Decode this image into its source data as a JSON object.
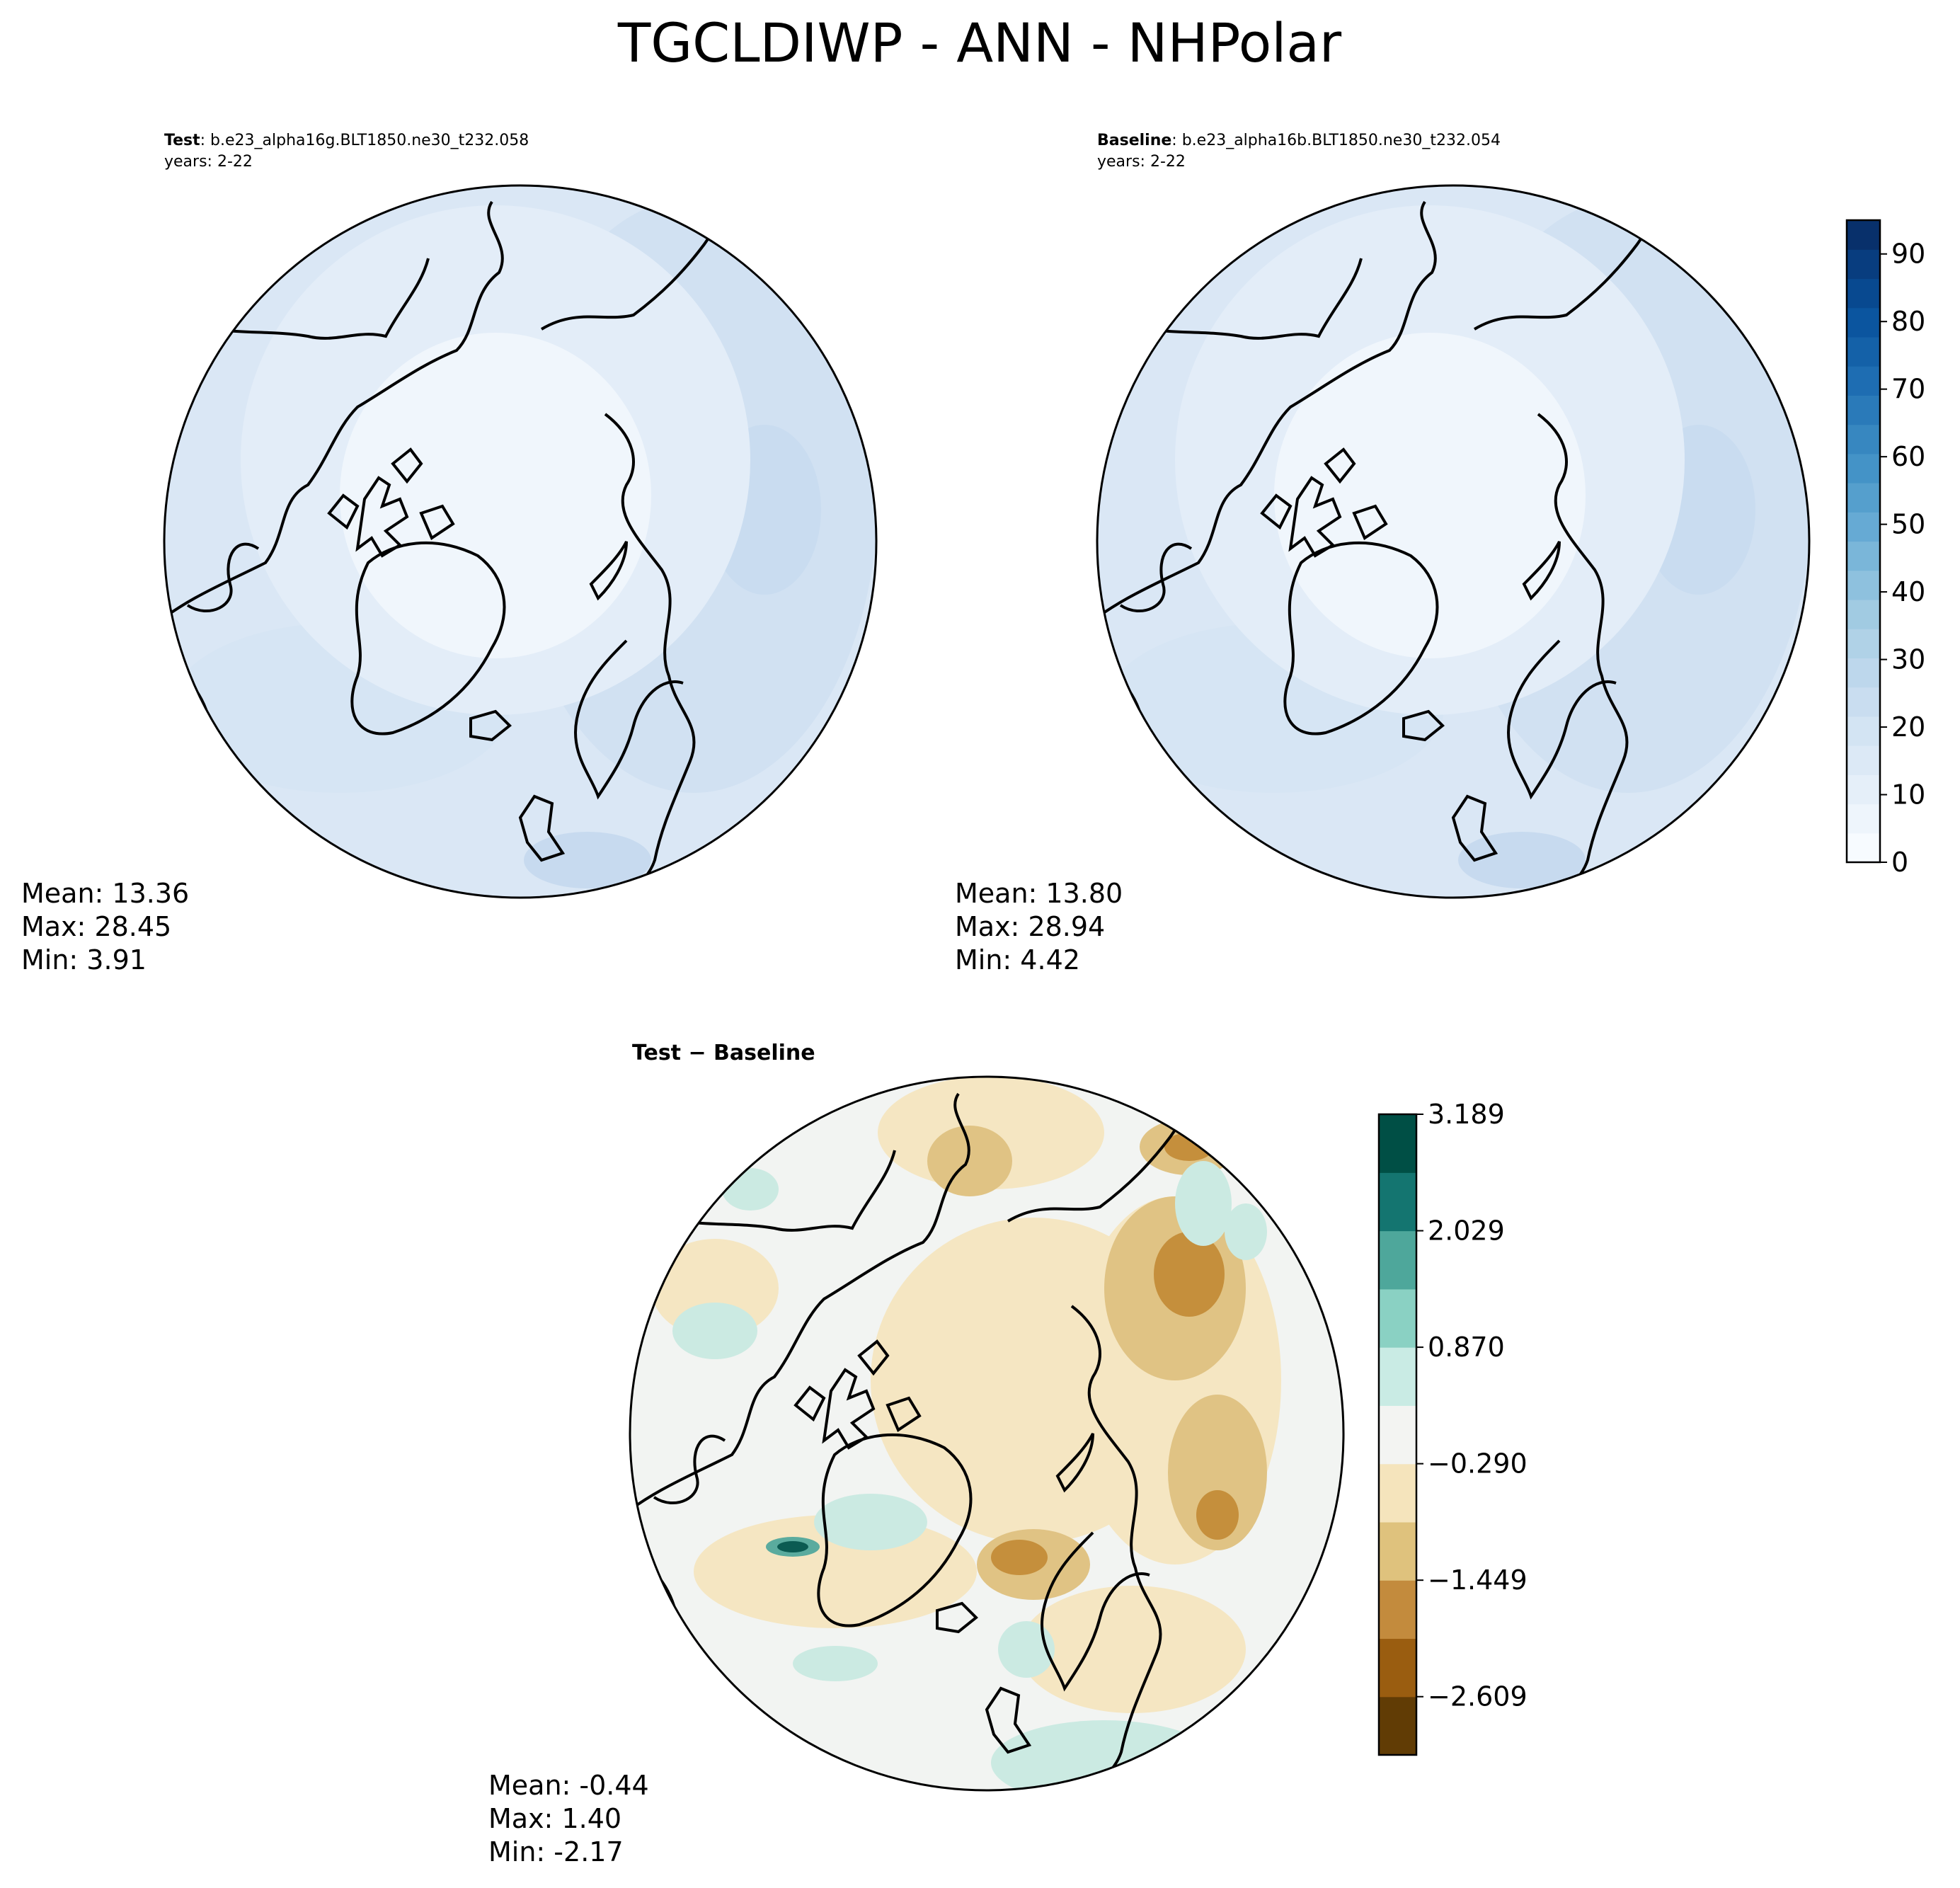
{
  "figure": {
    "title": "TGCLDIWP - ANN - NHPolar"
  },
  "panels": [
    {
      "id": "test",
      "label": "Test",
      "case": ": b.e23_alpha16g.BLT1850.ne30_t232.058",
      "years": "years: 2-22",
      "stats": {
        "mean": "Mean: 13.36",
        "max": "Max: 28.45",
        "min": "Min:  3.91"
      }
    },
    {
      "id": "baseline",
      "label": "Baseline",
      "case": ": b.e23_alpha16b.BLT1850.ne30_t232.054",
      "years": "years: 2-22",
      "stats": {
        "mean": "Mean: 13.80",
        "max": "Max: 28.94",
        "min": "Min:  4.42"
      }
    },
    {
      "id": "difference",
      "label": "Test − Baseline",
      "stats": {
        "mean": "Mean: -0.44",
        "max": "Max:  1.40",
        "min": "Min: -2.17"
      }
    }
  ],
  "colorbars": {
    "field": {
      "colormap": "Blues",
      "range": [
        0,
        95
      ],
      "ticks": [
        "0",
        "10",
        "20",
        "30",
        "40",
        "50",
        "60",
        "70",
        "80",
        "90"
      ],
      "colors": [
        "#f7fbff",
        "#eef5fc",
        "#e5eff9",
        "#dce9f6",
        "#d3e4f3",
        "#c9ddf0",
        "#bdd7ec",
        "#b0d2e7",
        "#a1cbe2",
        "#8ec1de",
        "#7ab6d9",
        "#66aad4",
        "#559fcd",
        "#4493c7",
        "#3787c0",
        "#2a7ab9",
        "#1e6db2",
        "#1461a8",
        "#0b559f",
        "#084990",
        "#083d7f",
        "#08306b"
      ]
    },
    "diff": {
      "colormap": "BrBG",
      "ticks": [
        "3.189",
        "2.029",
        "0.870",
        "−0.290",
        "−1.449",
        "−2.609"
      ],
      "colors": [
        "#613c05",
        "#9a5d10",
        "#c38b3d",
        "#dfc27d",
        "#f5e4bc",
        "#f3f4f2",
        "#c9ebe4",
        "#8ad1c3",
        "#4ea79b",
        "#147570",
        "#004f45"
      ]
    }
  },
  "map_colors": {
    "ocean_far": "#d8e6f5",
    "mid": "#e4eef8",
    "polar_core": "#f2f7fd",
    "diff_background": "#f2f4f2",
    "diff_negative_light": "#f5e6c2",
    "diff_negative_mid": "#e0c384",
    "diff_negative_strong": "#c58f3c",
    "diff_positive_light": "#cbeae2",
    "diff_positive_strong": "#5aab9e"
  }
}
